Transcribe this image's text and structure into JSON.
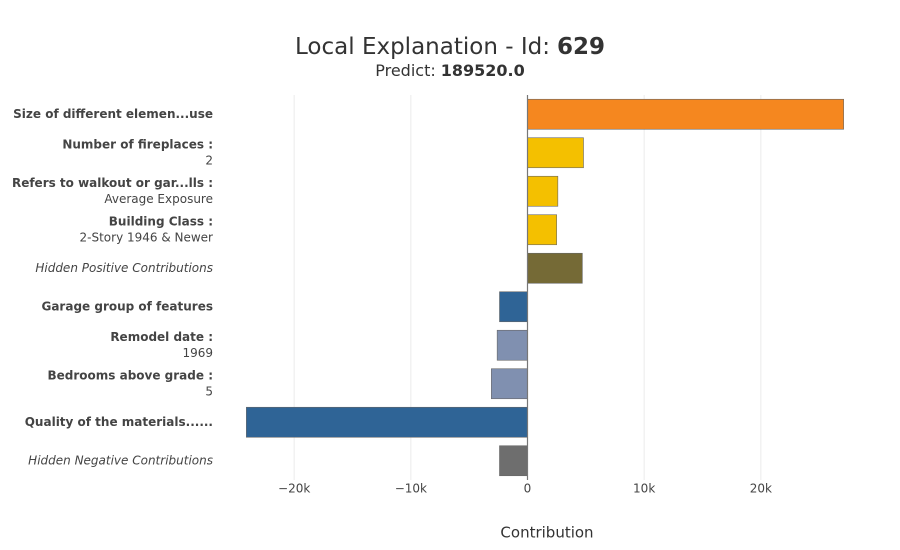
{
  "chart_data": {
    "type": "barh",
    "title": "Local Explanation - Id:",
    "title_id": "629",
    "subtitle": "Predict:",
    "prediction": "189520.0",
    "categories": [
      "Size of different elemen...use",
      "Number of fireplaces :",
      "Refers to walkout or gar...lls :",
      "Building Class :",
      "Hidden Positive Contributions",
      "Garage group of features",
      "Remodel date :",
      "Bedrooms above grade :",
      "Quality of the materials......",
      "Hidden Negative Contributions"
    ],
    "feature_values": [
      null,
      "2",
      "Average Exposure",
      "2-Story 1946 & Newer",
      null,
      null,
      "1969",
      "5",
      null,
      null
    ],
    "label_styles": [
      "bold",
      "bold",
      "bold",
      "bold",
      "italic",
      "bold",
      "bold",
      "bold",
      "bold",
      "italic"
    ],
    "values": [
      27100,
      4800,
      2600,
      2500,
      4700,
      -2400,
      -2600,
      -3100,
      -24100,
      -2400
    ],
    "colors": [
      "#f5871f",
      "#f4c000",
      "#f4c000",
      "#f4c000",
      "#756a36",
      "#2f6496",
      "#8090b0",
      "#8090b0",
      "#2f6496",
      "#6e6e6e"
    ],
    "xlabel": "Contribution",
    "xlim": [
      -25500,
      28500
    ],
    "xticks": [
      {
        "value": -20000,
        "label": "−20k"
      },
      {
        "value": -10000,
        "label": "−10k"
      },
      0,
      {
        "value": 10000,
        "label": "10k"
      },
      {
        "value": 20000,
        "label": "20k"
      }
    ],
    "grid": true
  }
}
